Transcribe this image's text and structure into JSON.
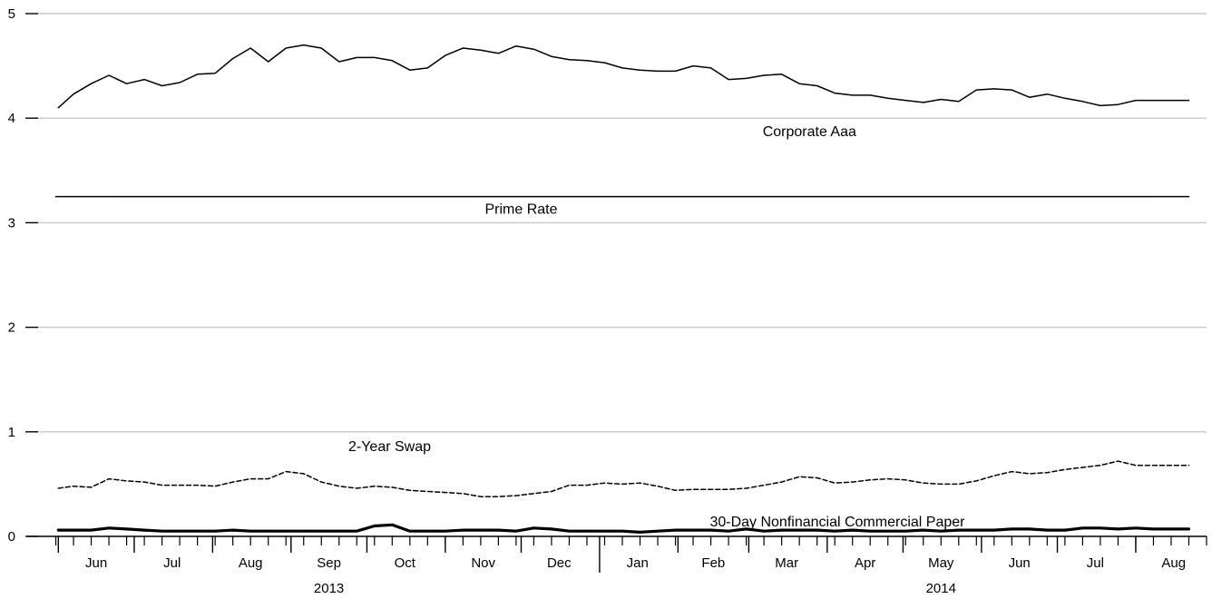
{
  "chart_data": {
    "type": "line",
    "title": "",
    "xlabel": "",
    "ylabel": "",
    "ylim": [
      0,
      5
    ],
    "y_ticks": [
      "0",
      "1",
      "2",
      "3",
      "4",
      "5"
    ],
    "grid": "horizontal",
    "x_start": "2013-05-24",
    "x_end": "2014-08-29",
    "month_labels": [
      {
        "label": "Jun",
        "date": "2013-06-16"
      },
      {
        "label": "Jul",
        "date": "2013-07-16"
      },
      {
        "label": "Aug",
        "date": "2013-08-16"
      },
      {
        "label": "Sep",
        "date": "2013-09-16"
      },
      {
        "label": "Oct",
        "date": "2013-10-16"
      },
      {
        "label": "Nov",
        "date": "2013-11-16"
      },
      {
        "label": "Dec",
        "date": "2013-12-16"
      },
      {
        "label": "Jan",
        "date": "2014-01-16"
      },
      {
        "label": "Feb",
        "date": "2014-02-15"
      },
      {
        "label": "Mar",
        "date": "2014-03-16"
      },
      {
        "label": "Apr",
        "date": "2014-04-16"
      },
      {
        "label": "May",
        "date": "2014-05-16"
      },
      {
        "label": "Jun",
        "date": "2014-06-16"
      },
      {
        "label": "Jul",
        "date": "2014-07-16"
      },
      {
        "label": "Aug",
        "date": "2014-08-16"
      }
    ],
    "year_labels": [
      {
        "label": "2013",
        "date": "2013-09-16"
      },
      {
        "label": "2014",
        "date": "2014-05-16"
      }
    ],
    "series": [
      {
        "name": "Corporate Aaa",
        "style": "solid",
        "label_date": "2014-03-25",
        "label_value": 3.87,
        "x": [
          "2013-06-01",
          "2013-06-07",
          "2013-06-14",
          "2013-06-21",
          "2013-06-28",
          "2013-07-05",
          "2013-07-12",
          "2013-07-19",
          "2013-07-26",
          "2013-08-02",
          "2013-08-09",
          "2013-08-16",
          "2013-08-23",
          "2013-08-30",
          "2013-09-06",
          "2013-09-13",
          "2013-09-20",
          "2013-09-27",
          "2013-10-04",
          "2013-10-11",
          "2013-10-18",
          "2013-10-25",
          "2013-11-01",
          "2013-11-08",
          "2013-11-15",
          "2013-11-22",
          "2013-11-29",
          "2013-12-06",
          "2013-12-13",
          "2013-12-20",
          "2013-12-27",
          "2014-01-03",
          "2014-01-10",
          "2014-01-17",
          "2014-01-24",
          "2014-01-31",
          "2014-02-07",
          "2014-02-14",
          "2014-02-21",
          "2014-02-28",
          "2014-03-07",
          "2014-03-14",
          "2014-03-21",
          "2014-03-28",
          "2014-04-04",
          "2014-04-11",
          "2014-04-18",
          "2014-04-25",
          "2014-05-02",
          "2014-05-09",
          "2014-05-16",
          "2014-05-23",
          "2014-05-30",
          "2014-06-06",
          "2014-06-13",
          "2014-06-20",
          "2014-06-27",
          "2014-07-04",
          "2014-07-11",
          "2014-07-18",
          "2014-07-25",
          "2014-08-01",
          "2014-08-08",
          "2014-08-15",
          "2014-08-22"
        ],
        "values": [
          4.1,
          4.23,
          4.33,
          4.41,
          4.33,
          4.37,
          4.31,
          4.34,
          4.42,
          4.43,
          4.57,
          4.67,
          4.54,
          4.67,
          4.7,
          4.67,
          4.54,
          4.58,
          4.58,
          4.55,
          4.46,
          4.48,
          4.6,
          4.67,
          4.65,
          4.62,
          4.69,
          4.66,
          4.59,
          4.56,
          4.55,
          4.53,
          4.48,
          4.46,
          4.45,
          4.45,
          4.5,
          4.48,
          4.37,
          4.38,
          4.41,
          4.42,
          4.33,
          4.31,
          4.24,
          4.22,
          4.22,
          4.19,
          4.17,
          4.15,
          4.18,
          4.16,
          4.27,
          4.28,
          4.27,
          4.2,
          4.23,
          4.19,
          4.16,
          4.12,
          4.13,
          4.17,
          4.17,
          4.17,
          4.17
        ]
      },
      {
        "name": "Prime Rate",
        "style": "solid",
        "label_date": "2013-12-01",
        "label_value": 3.13,
        "x": [
          "2013-05-31",
          "2014-08-22"
        ],
        "values": [
          3.25,
          3.25
        ]
      },
      {
        "name": "2-Year Swap",
        "style": "dashed",
        "label_date": "2013-10-10",
        "label_value": 0.86,
        "x": [
          "2013-06-01",
          "2013-06-07",
          "2013-06-14",
          "2013-06-21",
          "2013-06-28",
          "2013-07-05",
          "2013-07-12",
          "2013-07-19",
          "2013-07-26",
          "2013-08-02",
          "2013-08-09",
          "2013-08-16",
          "2013-08-23",
          "2013-08-30",
          "2013-09-06",
          "2013-09-13",
          "2013-09-20",
          "2013-09-27",
          "2013-10-04",
          "2013-10-11",
          "2013-10-18",
          "2013-10-25",
          "2013-11-01",
          "2013-11-08",
          "2013-11-15",
          "2013-11-22",
          "2013-11-29",
          "2013-12-06",
          "2013-12-13",
          "2013-12-20",
          "2013-12-27",
          "2014-01-03",
          "2014-01-10",
          "2014-01-17",
          "2014-01-24",
          "2014-01-31",
          "2014-02-07",
          "2014-02-14",
          "2014-02-21",
          "2014-02-28",
          "2014-03-07",
          "2014-03-14",
          "2014-03-21",
          "2014-03-28",
          "2014-04-04",
          "2014-04-11",
          "2014-04-18",
          "2014-04-25",
          "2014-05-02",
          "2014-05-09",
          "2014-05-16",
          "2014-05-23",
          "2014-05-30",
          "2014-06-06",
          "2014-06-13",
          "2014-06-20",
          "2014-06-27",
          "2014-07-04",
          "2014-07-11",
          "2014-07-18",
          "2014-07-25",
          "2014-08-01",
          "2014-08-08",
          "2014-08-15",
          "2014-08-22"
        ],
        "values": [
          0.46,
          0.48,
          0.47,
          0.55,
          0.53,
          0.52,
          0.49,
          0.49,
          0.49,
          0.48,
          0.52,
          0.55,
          0.55,
          0.62,
          0.6,
          0.52,
          0.48,
          0.46,
          0.48,
          0.47,
          0.44,
          0.43,
          0.42,
          0.41,
          0.38,
          0.38,
          0.39,
          0.41,
          0.43,
          0.49,
          0.49,
          0.51,
          0.5,
          0.51,
          0.48,
          0.44,
          0.45,
          0.45,
          0.45,
          0.46,
          0.49,
          0.52,
          0.57,
          0.56,
          0.51,
          0.52,
          0.54,
          0.55,
          0.54,
          0.51,
          0.5,
          0.5,
          0.53,
          0.58,
          0.62,
          0.6,
          0.61,
          0.64,
          0.66,
          0.68,
          0.72,
          0.68,
          0.68,
          0.68,
          0.68
        ]
      },
      {
        "name": "30-Day Nonfinancial Commercial Paper",
        "style": "bold",
        "label_date": "2014-04-05",
        "label_value": 0.14,
        "x": [
          "2013-06-01",
          "2013-06-07",
          "2013-06-14",
          "2013-06-21",
          "2013-06-28",
          "2013-07-05",
          "2013-07-12",
          "2013-07-19",
          "2013-07-26",
          "2013-08-02",
          "2013-08-09",
          "2013-08-16",
          "2013-08-23",
          "2013-08-30",
          "2013-09-06",
          "2013-09-13",
          "2013-09-20",
          "2013-09-27",
          "2013-10-04",
          "2013-10-11",
          "2013-10-18",
          "2013-10-25",
          "2013-11-01",
          "2013-11-08",
          "2013-11-15",
          "2013-11-22",
          "2013-11-29",
          "2013-12-06",
          "2013-12-13",
          "2013-12-20",
          "2013-12-27",
          "2014-01-03",
          "2014-01-10",
          "2014-01-17",
          "2014-01-24",
          "2014-01-31",
          "2014-02-07",
          "2014-02-14",
          "2014-02-21",
          "2014-02-28",
          "2014-03-07",
          "2014-03-14",
          "2014-03-21",
          "2014-03-28",
          "2014-04-04",
          "2014-04-11",
          "2014-04-18",
          "2014-04-25",
          "2014-05-02",
          "2014-05-09",
          "2014-05-16",
          "2014-05-23",
          "2014-05-30",
          "2014-06-06",
          "2014-06-13",
          "2014-06-20",
          "2014-06-27",
          "2014-07-04",
          "2014-07-11",
          "2014-07-18",
          "2014-07-25",
          "2014-08-01",
          "2014-08-08",
          "2014-08-15",
          "2014-08-22"
        ],
        "values": [
          0.06,
          0.06,
          0.06,
          0.08,
          0.07,
          0.06,
          0.05,
          0.05,
          0.05,
          0.05,
          0.06,
          0.05,
          0.05,
          0.05,
          0.05,
          0.05,
          0.05,
          0.05,
          0.1,
          0.11,
          0.05,
          0.05,
          0.05,
          0.06,
          0.06,
          0.06,
          0.05,
          0.08,
          0.07,
          0.05,
          0.05,
          0.05,
          0.05,
          0.04,
          0.05,
          0.06,
          0.06,
          0.06,
          0.05,
          0.07,
          0.05,
          0.06,
          0.06,
          0.06,
          0.05,
          0.06,
          0.05,
          0.05,
          0.05,
          0.06,
          0.05,
          0.06,
          0.06,
          0.06,
          0.07,
          0.07,
          0.06,
          0.06,
          0.08,
          0.08,
          0.07,
          0.08,
          0.07,
          0.07,
          0.07
        ]
      }
    ]
  }
}
